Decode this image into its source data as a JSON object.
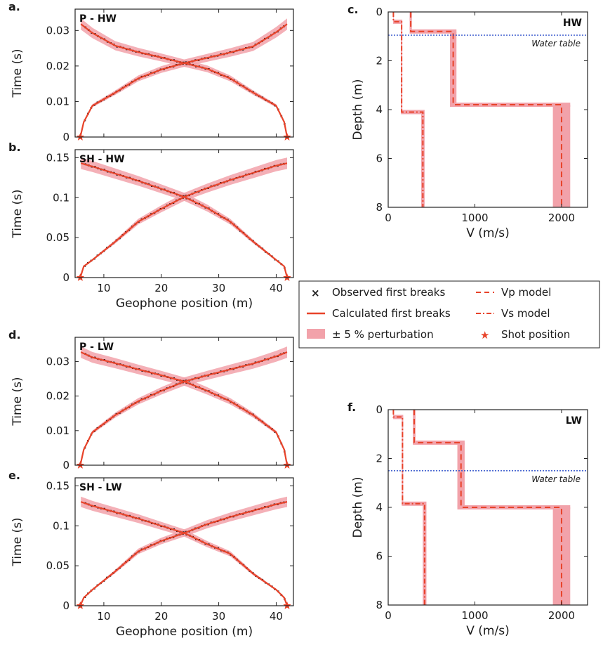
{
  "colors": {
    "calc": "#e8432a",
    "band": "#f2a2aa",
    "obs": "#111111",
    "water": "#3355cc"
  },
  "legend": {
    "obs": "Observed first breaks",
    "calc": "Calculated first breaks",
    "band": "± 5 % perturbation",
    "vp": "Vp model",
    "vs": "Vs model",
    "shot": "Shot position"
  },
  "chart_data": [
    {
      "id": "a",
      "panel_label": "a.",
      "title": "P - HW",
      "type": "line",
      "xlabel": "",
      "ylabel": "Time (s)",
      "xlim": [
        5,
        43
      ],
      "ylim": [
        0,
        0.036
      ],
      "x_ticks": [
        10,
        20,
        30,
        40
      ],
      "x_tick_labels": [
        "",
        "",
        "",
        ""
      ],
      "y_ticks": [
        0,
        0.01,
        0.02,
        0.03
      ],
      "y_tick_labels": [
        "0",
        "0.01",
        "0.02",
        "0.03"
      ],
      "shots": [
        5.9,
        41.9
      ],
      "series": [
        {
          "x": [
            5.9,
            6.5,
            8,
            12,
            16,
            20,
            24,
            28,
            32,
            36,
            40,
            41.9
          ],
          "values": [
            0,
            0.0042,
            0.0088,
            0.0125,
            0.0165,
            0.019,
            0.0208,
            0.0223,
            0.0238,
            0.0255,
            0.0295,
            0.0318
          ]
        },
        {
          "x": [
            6,
            8,
            12,
            16,
            20,
            24,
            28,
            32,
            36,
            40,
            41.4,
            41.9
          ],
          "values": [
            0.0318,
            0.0293,
            0.0257,
            0.0239,
            0.0224,
            0.0208,
            0.0192,
            0.0165,
            0.0125,
            0.0088,
            0.0042,
            0
          ]
        }
      ]
    },
    {
      "id": "b",
      "panel_label": "b.",
      "title": "SH - HW",
      "type": "line",
      "xlabel": "Geophone position (m)",
      "ylabel": "Time (s)",
      "xlim": [
        5,
        43
      ],
      "ylim": [
        0,
        0.16
      ],
      "x_ticks": [
        10,
        20,
        30,
        40
      ],
      "x_tick_labels": [
        "10",
        "20",
        "30",
        "40"
      ],
      "y_ticks": [
        0,
        0.05,
        0.1,
        0.15
      ],
      "y_tick_labels": [
        "0",
        "0.05",
        "0.1",
        "0.15"
      ],
      "shots": [
        5.9,
        41.9
      ],
      "series": [
        {
          "x": [
            5.9,
            6.5,
            8,
            12,
            16,
            20,
            24,
            28,
            32,
            36,
            40,
            41.9
          ],
          "values": [
            0,
            0.014,
            0.022,
            0.045,
            0.07,
            0.086,
            0.101,
            0.112,
            0.122,
            0.131,
            0.14,
            0.143
          ]
        },
        {
          "x": [
            6,
            8,
            12,
            16,
            20,
            24,
            28,
            32,
            36,
            40,
            41.4,
            41.9
          ],
          "values": [
            0.143,
            0.139,
            0.13,
            0.121,
            0.111,
            0.101,
            0.087,
            0.07,
            0.045,
            0.022,
            0.014,
            0
          ]
        }
      ]
    },
    {
      "id": "c",
      "panel_label": "c.",
      "title": "HW",
      "type": "line",
      "xlabel": "V (m/s)",
      "ylabel": "Depth (m)",
      "xlim": [
        0,
        2300
      ],
      "ylim": [
        0,
        8
      ],
      "x_ticks": [
        0,
        1000,
        2000
      ],
      "x_tick_labels": [
        "0",
        "1000",
        "2000"
      ],
      "y_ticks": [
        0,
        2,
        4,
        6,
        8
      ],
      "y_tick_labels": [
        "0",
        "2",
        "4",
        "6",
        "8"
      ],
      "water_table_depth": 0.95,
      "water_table_label": "Water table",
      "vp": {
        "depths": [
          0,
          0.8,
          3.8,
          8
        ],
        "velocities": [
          260,
          750,
          2000
        ]
      },
      "vs": {
        "depths": [
          0,
          0.4,
          4.1,
          8
        ],
        "velocities": [
          60,
          155,
          400
        ]
      }
    },
    {
      "id": "d",
      "panel_label": "d.",
      "title": "P - LW",
      "type": "line",
      "xlabel": "",
      "ylabel": "Time (s)",
      "xlim": [
        5,
        43
      ],
      "ylim": [
        0,
        0.037
      ],
      "x_ticks": [
        10,
        20,
        30,
        40
      ],
      "x_tick_labels": [
        "",
        "",
        "",
        ""
      ],
      "y_ticks": [
        0,
        0.01,
        0.02,
        0.03
      ],
      "y_tick_labels": [
        "0",
        "0.01",
        "0.02",
        "0.03"
      ],
      "shots": [
        5.9,
        41.9
      ],
      "series": [
        {
          "x": [
            5.9,
            6.5,
            8,
            12,
            16,
            20,
            24,
            28,
            32,
            36,
            40,
            41.9
          ],
          "values": [
            0,
            0.0045,
            0.0095,
            0.0145,
            0.0185,
            0.0215,
            0.0242,
            0.026,
            0.0277,
            0.0294,
            0.0315,
            0.0327
          ]
        },
        {
          "x": [
            6,
            8,
            12,
            16,
            20,
            24,
            28,
            32,
            36,
            40,
            41.4,
            41.9
          ],
          "values": [
            0.0327,
            0.0312,
            0.0295,
            0.0277,
            0.026,
            0.0242,
            0.0215,
            0.0185,
            0.0145,
            0.0095,
            0.0045,
            0
          ]
        }
      ]
    },
    {
      "id": "e",
      "panel_label": "e.",
      "title": "SH - LW",
      "type": "line",
      "xlabel": "Geophone position (m)",
      "ylabel": "Time (s)",
      "xlim": [
        5,
        43
      ],
      "ylim": [
        0,
        0.16
      ],
      "x_ticks": [
        10,
        20,
        30,
        40
      ],
      "x_tick_labels": [
        "10",
        "20",
        "30",
        "40"
      ],
      "y_ticks": [
        0,
        0.05,
        0.1,
        0.15
      ],
      "y_tick_labels": [
        "0",
        "0.05",
        "0.1",
        "0.15"
      ],
      "shots": [
        5.9,
        41.9
      ],
      "series": [
        {
          "x": [
            5.9,
            6.5,
            8,
            12,
            16,
            20,
            24,
            28,
            32,
            36,
            40,
            41.9
          ],
          "values": [
            0,
            0.01,
            0.02,
            0.043,
            0.068,
            0.081,
            0.091,
            0.102,
            0.111,
            0.119,
            0.127,
            0.13
          ]
        },
        {
          "x": [
            6,
            8,
            12,
            16,
            20,
            24,
            28,
            32,
            36,
            40,
            41.4,
            41.9
          ],
          "values": [
            0.13,
            0.125,
            0.117,
            0.109,
            0.1,
            0.091,
            0.077,
            0.065,
            0.04,
            0.02,
            0.01,
            0
          ]
        }
      ]
    },
    {
      "id": "f",
      "panel_label": "f.",
      "title": "LW",
      "type": "line",
      "xlabel": "V (m/s)",
      "ylabel": "Depth (m)",
      "xlim": [
        0,
        2300
      ],
      "ylim": [
        0,
        8
      ],
      "x_ticks": [
        0,
        1000,
        2000
      ],
      "x_tick_labels": [
        "0",
        "1000",
        "2000"
      ],
      "y_ticks": [
        0,
        2,
        4,
        6,
        8
      ],
      "y_tick_labels": [
        "0",
        "2",
        "4",
        "6",
        "8"
      ],
      "water_table_depth": 2.5,
      "water_table_label": "Water table",
      "vp": {
        "depths": [
          0,
          1.35,
          4.0,
          8
        ],
        "velocities": [
          300,
          840,
          2000
        ]
      },
      "vs": {
        "depths": [
          0,
          0.3,
          3.85,
          8
        ],
        "velocities": [
          60,
          165,
          420
        ]
      }
    }
  ]
}
